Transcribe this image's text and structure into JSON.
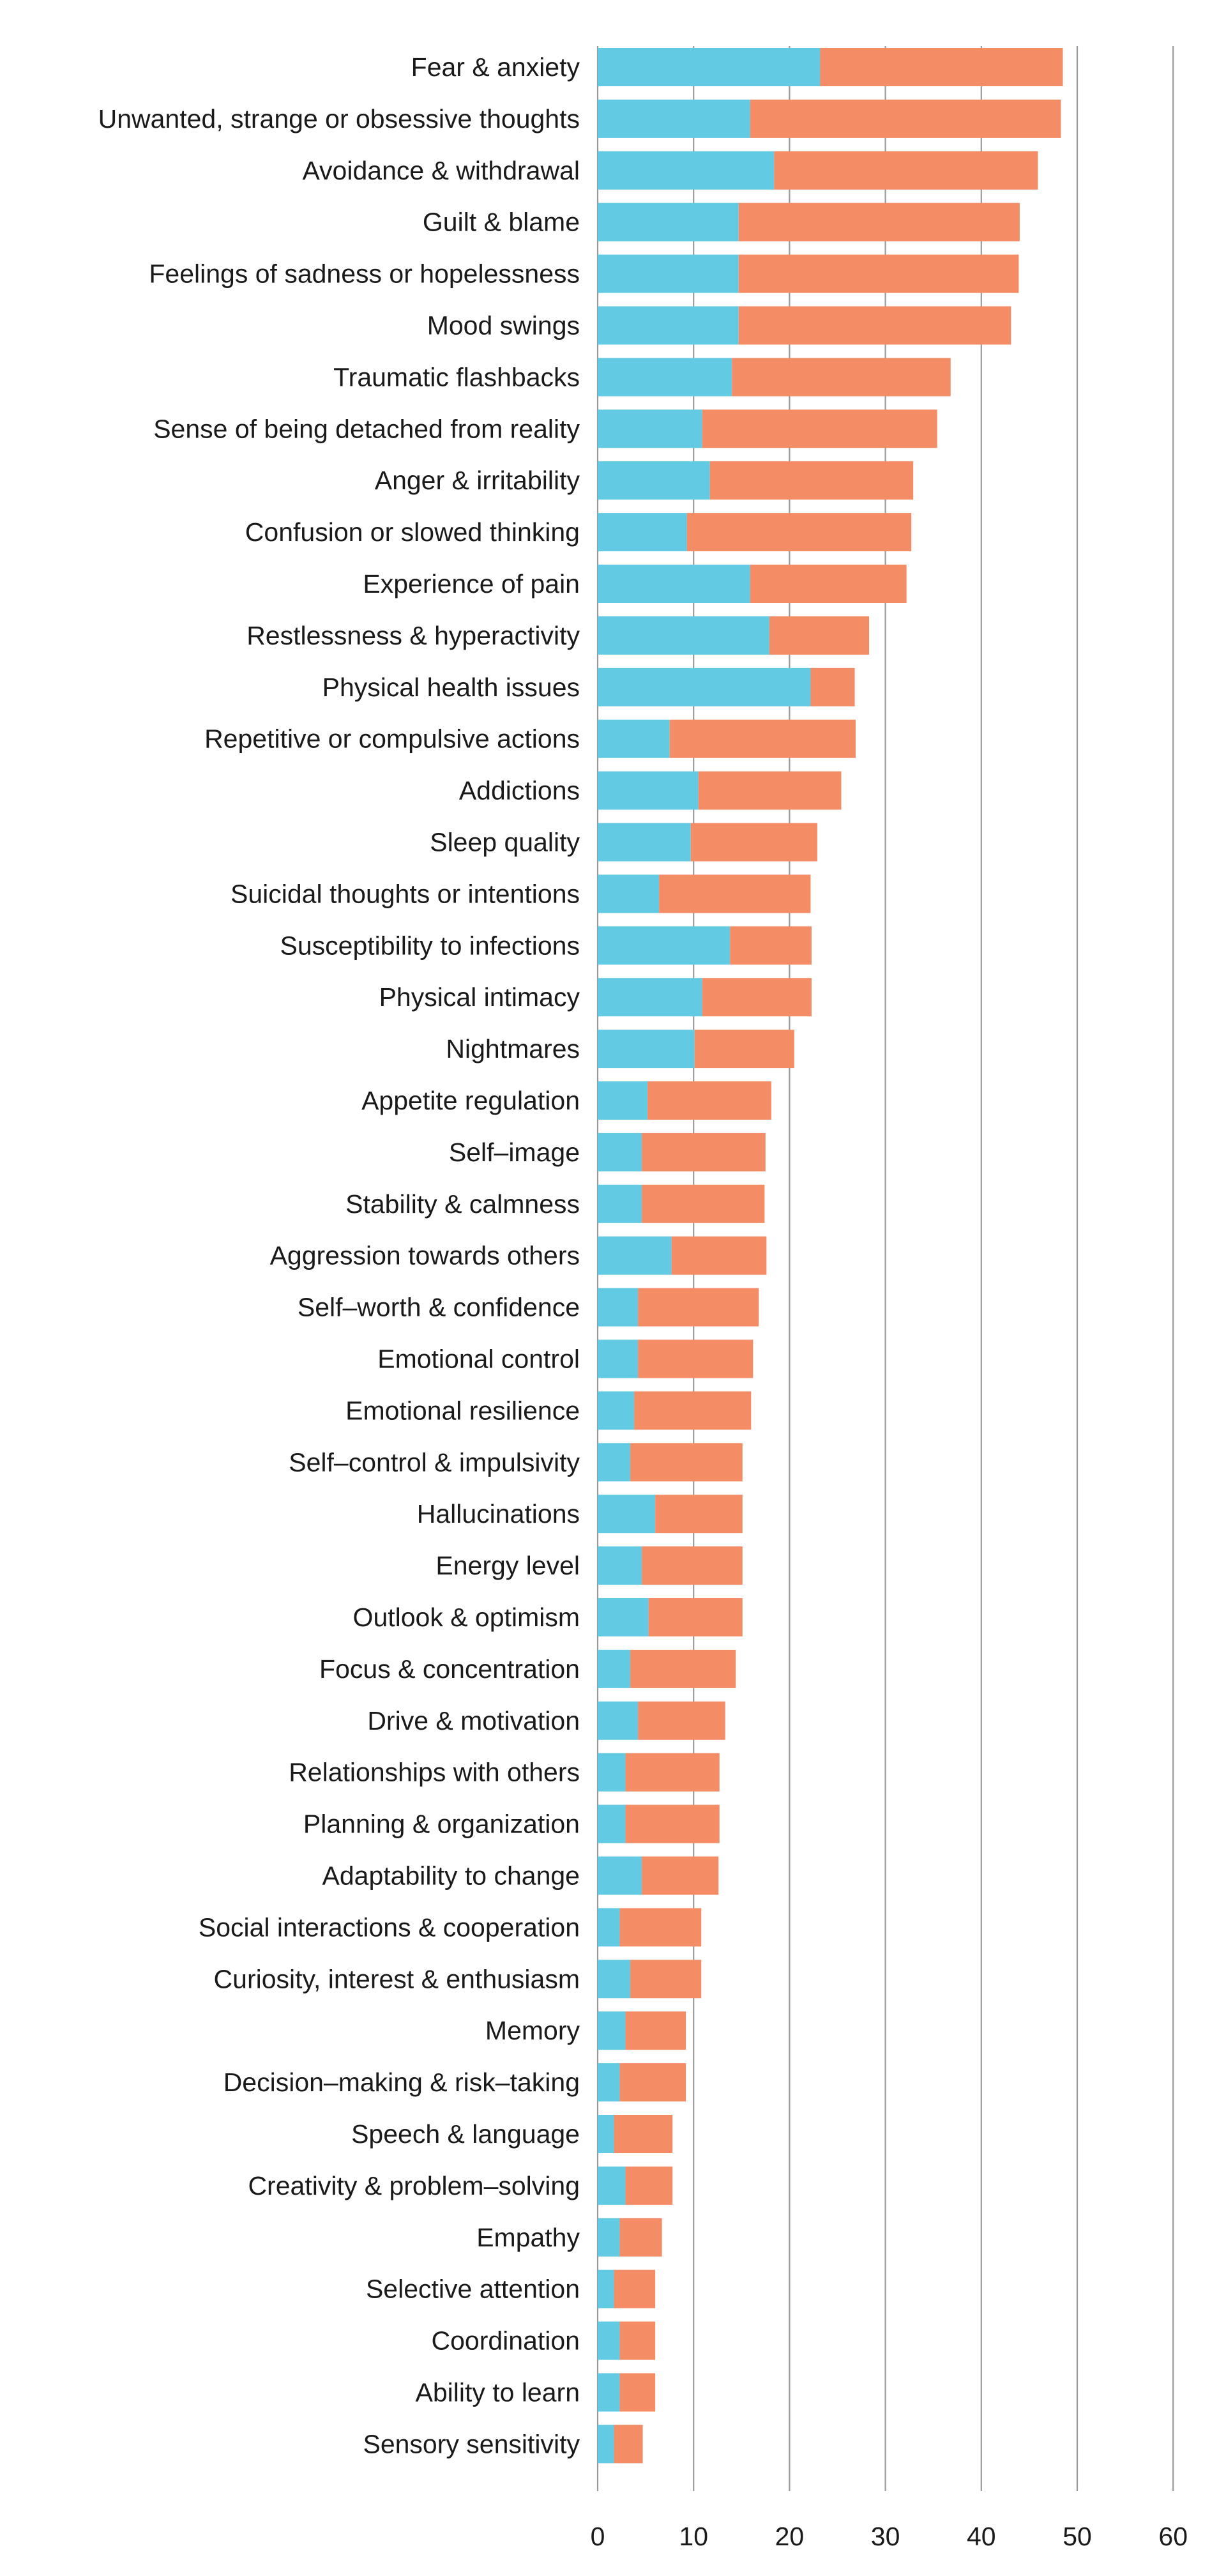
{
  "chart_data": {
    "type": "bar",
    "orientation": "horizontal",
    "stacked": true,
    "title": "",
    "xlabel": "",
    "ylabel": "",
    "xlim": [
      0,
      60
    ],
    "x_ticks": [
      "0",
      "10",
      "20",
      "30",
      "40",
      "50",
      "60"
    ],
    "grid": "vertical",
    "legend": "none",
    "colors": [
      "#62CAE3",
      "#F48C66"
    ],
    "categories": [
      "Fear & anxiety",
      "Unwanted, strange or obsessive thoughts",
      "Avoidance & withdrawal",
      "Guilt & blame",
      "Feelings of sadness or hopelessness",
      "Mood swings",
      "Traumatic flashbacks",
      "Sense of being detached from reality",
      "Anger & irritability",
      "Confusion or slowed thinking",
      "Experience of pain",
      "Restlessness & hyperactivity",
      "Physical health issues",
      "Repetitive or compulsive actions",
      "Addictions",
      "Sleep quality",
      "Suicidal thoughts or intentions",
      "Susceptibility to infections",
      "Physical intimacy",
      "Nightmares",
      "Appetite regulation",
      "Self–image",
      "Stability & calmness",
      "Aggression towards others",
      "Self–worth & confidence",
      "Emotional control",
      "Emotional resilience",
      "Self–control & impulsivity",
      "Hallucinations",
      "Energy level",
      "Outlook & optimism",
      "Focus & concentration",
      "Drive & motivation",
      "Relationships with others",
      "Planning & organization",
      "Adaptability to change",
      "Social interactions & cooperation",
      "Curiosity, interest & enthusiasm",
      "Memory",
      "Decision–making & risk–taking",
      "Speech & language",
      "Creativity & problem–solving",
      "Empathy",
      "Selective attention",
      "Coordination",
      "Ability to learn",
      "Sensory sensitivity"
    ],
    "series": [
      {
        "values": [
          23.2,
          15.9,
          18.4,
          14.7,
          14.7,
          14.7,
          14.0,
          10.9,
          11.7,
          9.3,
          15.9,
          17.9,
          22.2,
          7.5,
          10.5,
          9.7,
          6.4,
          13.8,
          10.9,
          10.1,
          5.2,
          4.6,
          4.6,
          7.7,
          4.2,
          4.2,
          3.8,
          3.4,
          6.0,
          4.6,
          5.3,
          3.4,
          4.2,
          2.9,
          2.9,
          4.6,
          2.3,
          3.4,
          2.9,
          2.3,
          1.7,
          2.9,
          2.3,
          1.7,
          2.3,
          2.3,
          1.7
        ]
      },
      {
        "values": [
          25.3,
          32.4,
          27.5,
          29.3,
          29.2,
          28.4,
          22.8,
          24.5,
          21.2,
          23.4,
          16.3,
          10.4,
          4.6,
          19.4,
          14.9,
          13.2,
          15.8,
          8.5,
          11.4,
          10.4,
          12.9,
          12.9,
          12.8,
          9.9,
          12.6,
          12.0,
          12.2,
          11.7,
          9.1,
          10.5,
          9.8,
          11.0,
          9.1,
          9.8,
          9.8,
          8.0,
          8.5,
          7.4,
          6.3,
          6.9,
          6.1,
          4.9,
          4.4,
          4.3,
          3.7,
          3.7,
          3.0
        ]
      }
    ]
  }
}
